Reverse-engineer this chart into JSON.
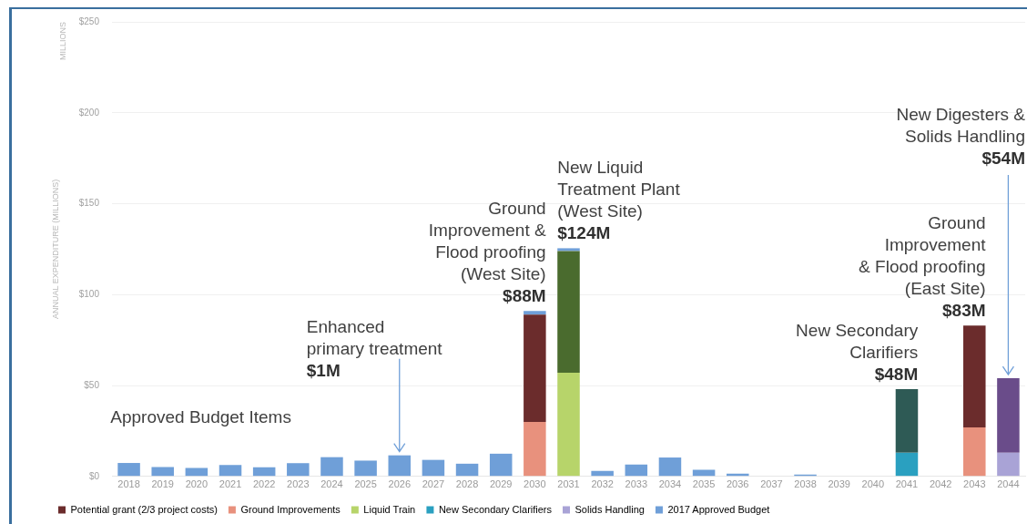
{
  "chart_data": {
    "type": "bar",
    "stacked": true,
    "ylabel": "ANNUAL EXPENDITURE (MILLIONS)",
    "categories": [
      "2018",
      "2019",
      "2020",
      "2021",
      "2022",
      "2023",
      "2024",
      "2025",
      "2026",
      "2027",
      "2028",
      "2029",
      "2030",
      "2031",
      "2032",
      "2033",
      "2034",
      "2035",
      "2036",
      "2037",
      "2038",
      "2039",
      "2040",
      "2041",
      "2042",
      "2043",
      "2044"
    ],
    "series": [
      {
        "name": "Ground Improvements",
        "color": "#e8917d",
        "values": [
          null,
          null,
          null,
          null,
          null,
          null,
          null,
          null,
          null,
          null,
          null,
          null,
          30,
          null,
          null,
          null,
          null,
          null,
          null,
          null,
          null,
          null,
          null,
          null,
          null,
          27,
          null
        ]
      },
      {
        "name": "Liquid Train",
        "color": "#b7d46a",
        "values": [
          null,
          null,
          null,
          null,
          null,
          null,
          null,
          null,
          null,
          null,
          null,
          null,
          null,
          57,
          null,
          null,
          null,
          null,
          null,
          null,
          null,
          null,
          null,
          null,
          null,
          null,
          null
        ]
      },
      {
        "name": "New Secondary Clarifiers",
        "color": "#2aa0c0",
        "values": [
          null,
          null,
          null,
          null,
          null,
          null,
          null,
          null,
          null,
          null,
          null,
          null,
          null,
          null,
          null,
          null,
          null,
          null,
          null,
          null,
          null,
          null,
          null,
          13,
          null,
          null,
          null
        ]
      },
      {
        "name": "Solids Handling",
        "color": "#a9a3d6",
        "values": [
          null,
          null,
          null,
          null,
          null,
          null,
          null,
          null,
          null,
          null,
          null,
          null,
          null,
          null,
          null,
          null,
          null,
          null,
          null,
          null,
          null,
          null,
          null,
          null,
          null,
          null,
          13
        ]
      },
      {
        "name": "Potential grant (2/3 project costs)",
        "color": "#6b2c2c",
        "colors": [
          "#6b2c2c",
          "#6b2c2c",
          "#6b2c2c",
          "#6b2c2c",
          "#6b2c2c",
          "#6b2c2c",
          "#6b2c2c",
          "#6b2c2c",
          "#6b2c2c",
          "#6b2c2c",
          "#6b2c2c",
          "#6b2c2c",
          "#6b2c2c",
          "#4a6b2e",
          "#6b2c2c",
          "#6b2c2c",
          "#6b2c2c",
          "#6b2c2c",
          "#6b2c2c",
          "#6b2c2c",
          "#6b2c2c",
          "#6b2c2c",
          "#6b2c2c",
          "#2e5a55",
          "#6b2c2c",
          "#6b2c2c",
          "#6a4c8a"
        ],
        "values": [
          null,
          null,
          null,
          null,
          null,
          null,
          null,
          null,
          null,
          null,
          null,
          null,
          59,
          67,
          null,
          null,
          null,
          null,
          null,
          null,
          null,
          null,
          null,
          35,
          null,
          56,
          41
        ]
      },
      {
        "name": "2017 Approved Budget",
        "color": "#6f9fd8",
        "values": [
          7.4,
          5.2,
          4.6,
          6.3,
          5,
          7.3,
          10.6,
          8.7,
          11.6,
          9.1,
          7,
          12.5,
          2,
          1.5,
          3,
          6.5,
          10.4,
          3.7,
          1.5,
          null,
          1,
          null,
          null,
          null,
          null,
          null,
          null
        ]
      }
    ],
    "ylim": [
      0,
      250
    ],
    "yticks": [
      {
        "value": 0,
        "label": "$0"
      },
      {
        "value": 50,
        "label": "$50"
      },
      {
        "value": 100,
        "label": "$100"
      },
      {
        "value": 150,
        "label": "$150"
      },
      {
        "value": 200,
        "label": "$200"
      },
      {
        "value": 250,
        "label": "$250"
      }
    ],
    "grid": "y",
    "legend": "bottom",
    "annotations": [
      "MILLIONS",
      {
        "text": "Approved Budget Items",
        "x": "2018",
        "y": 7.4
      },
      {
        "text": "Enhanced\nprimary treatment\n$1M",
        "x": "2026",
        "y": 11.6
      },
      {
        "text": "Ground\nImprovement &\nFlood proofing\n(West Site)\n$88M",
        "x": "2030",
        "y": 91
      },
      {
        "text": "New Liquid\nTreatment Plant\n(West Site)\n$124M",
        "x": "2031",
        "y": 125.5
      },
      {
        "text": "New Secondary\nClarifiers\n$48M",
        "x": "2041",
        "y": 48
      },
      {
        "text": "Ground\nImprovement\n& Flood proofing\n(East Site)\n$83M",
        "x": "2043",
        "y": 83
      },
      {
        "text": "New Digesters &\nSolids Handling\n$54M",
        "x": "2044",
        "y": 54
      }
    ]
  }
}
